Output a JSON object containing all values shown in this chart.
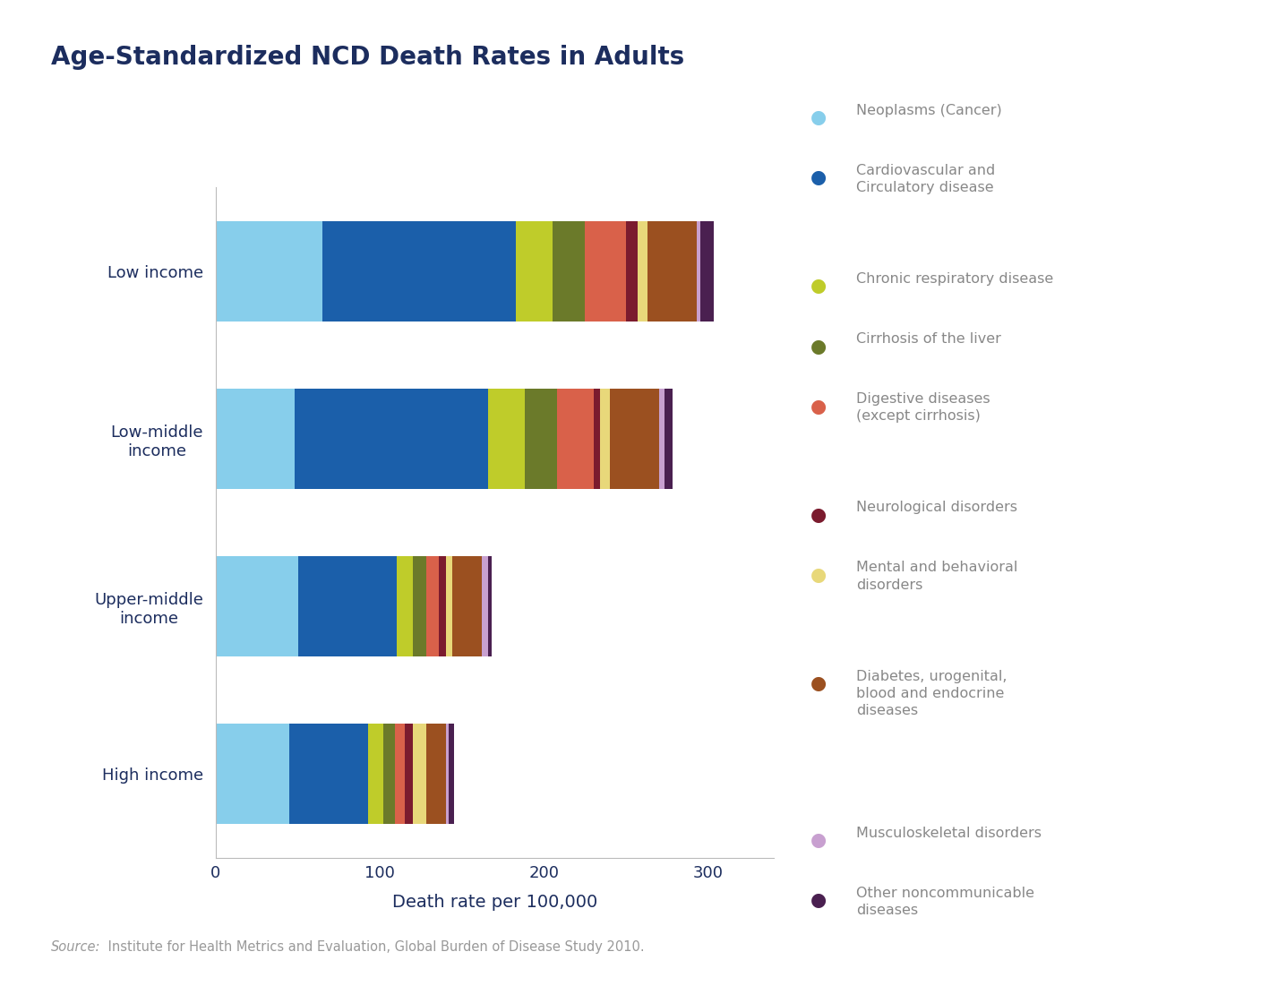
{
  "title": "Age-Standardized NCD Death Rates in Adults",
  "categories": [
    "Low income",
    "Low-middle\nincome",
    "Upper-middle\nincome",
    "High income"
  ],
  "colors": [
    "#87CEEB",
    "#1B5FAA",
    "#BFCC2A",
    "#6B7A2A",
    "#D9614A",
    "#7B1B2E",
    "#E8D87A",
    "#9B5020",
    "#C8A0D0",
    "#4A2050"
  ],
  "legend_labels": [
    "Neoplasms (Cancer)",
    "Cardiovascular and\nCirculatory disease",
    "Chronic respiratory disease",
    "Cirrhosis of the liver",
    "Digestive diseases\n(except cirrhosis)",
    "Neurological disorders",
    "Mental and behavioral\ndisorders",
    "Diabetes, urogenital,\nblood and endocrine\ndiseases",
    "Musculoskeletal disorders",
    "Other noncommunicable\ndiseases"
  ],
  "data": {
    "Low income": [
      65,
      118,
      22,
      20,
      25,
      7,
      6,
      30,
      2,
      8
    ],
    "Low-middle\nincome": [
      48,
      118,
      22,
      20,
      22,
      4,
      6,
      30,
      3,
      5
    ],
    "Upper-middle\nincome": [
      50,
      60,
      10,
      8,
      8,
      4,
      4,
      18,
      4,
      2
    ],
    "High income": [
      45,
      48,
      9,
      7,
      6,
      5,
      8,
      12,
      2,
      3
    ]
  },
  "xlabel": "Death rate per 100,000",
  "xlim": [
    0,
    340
  ],
  "xticks": [
    0,
    100,
    200,
    300
  ],
  "source_italic": "Source:",
  "source_rest": " Institute for Health Metrics and Evaluation, Global Burden of Disease Study 2010.",
  "background_color": "#FFFFFF",
  "title_color": "#1C2D5E",
  "label_color": "#1C2D5E",
  "axis_color": "#BBBBBB",
  "legend_label_color": "#888888",
  "source_label_color": "#999999"
}
